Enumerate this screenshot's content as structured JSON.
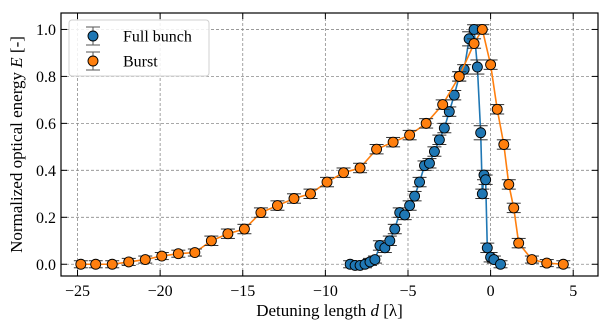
{
  "chart_data": {
    "type": "scatter",
    "xlabel": "Detuning length",
    "xlabel_symbol": "d",
    "xlabel_unit": "[λ]",
    "ylabel": "Normalized optical energy",
    "ylabel_symbol": "E",
    "ylabel_unit": "[-]",
    "xlim": [
      -26,
      6.5
    ],
    "ylim": [
      -0.05,
      1.07
    ],
    "xticks": [
      -25,
      -20,
      -15,
      -10,
      -5,
      0,
      5
    ],
    "yticks": [
      0.0,
      0.2,
      0.4,
      0.6,
      0.8,
      1.0
    ],
    "xtick_labels": [
      "−25",
      "−20",
      "−15",
      "−10",
      "−5",
      "0",
      "5"
    ],
    "ytick_labels": [
      "0.0",
      "0.2",
      "0.4",
      "0.6",
      "0.8",
      "1.0"
    ],
    "grid": true,
    "legend_position": "top-left",
    "series": [
      {
        "name": "Full bunch",
        "color": "#1f77b4",
        "x": [
          -8.5,
          -8.2,
          -7.9,
          -7.6,
          -7.3,
          -7.0,
          -6.7,
          -6.4,
          -6.1,
          -5.8,
          -5.5,
          -5.2,
          -4.9,
          -4.6,
          -4.3,
          -4.0,
          -3.7,
          -3.4,
          -3.1,
          -2.8,
          -2.5,
          -2.2,
          -1.9,
          -1.6,
          -1.3,
          -1.0,
          -0.8,
          -0.6,
          -0.5,
          -0.4,
          -0.3,
          -0.2,
          0.0,
          0.2,
          0.6
        ],
        "y": [
          0.0,
          -0.005,
          -0.005,
          0.0,
          0.01,
          0.02,
          0.08,
          0.07,
          0.1,
          0.15,
          0.22,
          0.21,
          0.25,
          0.29,
          0.35,
          0.42,
          0.43,
          0.48,
          0.53,
          0.58,
          0.65,
          0.72,
          0.8,
          0.83,
          0.96,
          1.0,
          0.84,
          0.56,
          0.3,
          0.38,
          0.36,
          0.07,
          0.03,
          0.02,
          0.0
        ],
        "err": [
          0.015,
          0.015,
          0.015,
          0.015,
          0.015,
          0.015,
          0.02,
          0.02,
          0.02,
          0.02,
          0.02,
          0.02,
          0.02,
          0.02,
          0.02,
          0.02,
          0.02,
          0.02,
          0.02,
          0.02,
          0.02,
          0.02,
          0.02,
          0.02,
          0.03,
          0.02,
          0.03,
          0.03,
          0.02,
          0.02,
          0.02,
          0.02,
          0.02,
          0.015,
          0.015
        ]
      },
      {
        "name": "Burst",
        "color": "#ff7f0e",
        "x": [
          -24.8,
          -23.9,
          -22.9,
          -21.9,
          -20.9,
          -19.9,
          -18.9,
          -17.9,
          -16.9,
          -15.9,
          -14.9,
          -13.9,
          -12.9,
          -11.9,
          -10.9,
          -9.9,
          -8.9,
          -7.9,
          -6.9,
          -5.9,
          -4.9,
          -3.9,
          -2.9,
          -1.9,
          -1.0,
          -0.5,
          0.0,
          0.4,
          0.8,
          1.1,
          1.4,
          1.7,
          2.5,
          3.4,
          4.4
        ],
        "y": [
          0.0,
          0.0,
          0.0,
          0.01,
          0.02,
          0.035,
          0.045,
          0.05,
          0.1,
          0.13,
          0.15,
          0.22,
          0.25,
          0.28,
          0.3,
          0.35,
          0.39,
          0.41,
          0.49,
          0.52,
          0.55,
          0.6,
          0.68,
          0.8,
          0.94,
          1.0,
          0.85,
          0.66,
          0.51,
          0.34,
          0.24,
          0.09,
          0.02,
          0.005,
          0.0
        ],
        "err": [
          0.015,
          0.015,
          0.015,
          0.015,
          0.015,
          0.015,
          0.015,
          0.015,
          0.02,
          0.02,
          0.02,
          0.02,
          0.02,
          0.02,
          0.02,
          0.02,
          0.02,
          0.02,
          0.02,
          0.02,
          0.02,
          0.02,
          0.02,
          0.02,
          0.02,
          0.02,
          0.02,
          0.02,
          0.02,
          0.02,
          0.02,
          0.02,
          0.015,
          0.015,
          0.015
        ]
      }
    ]
  }
}
